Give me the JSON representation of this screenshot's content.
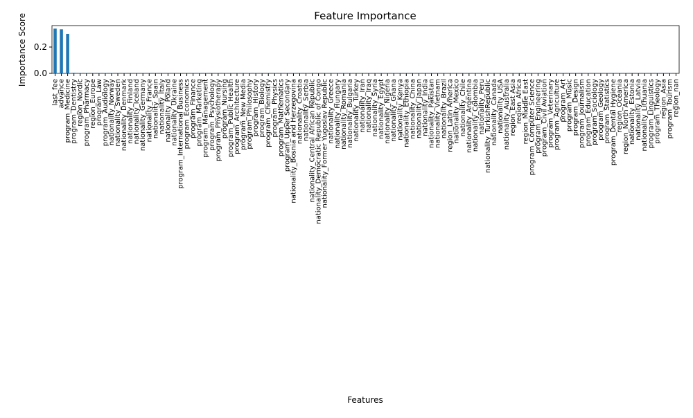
{
  "chart_data": {
    "type": "bar",
    "title": "Feature Importance",
    "x_label": "Features",
    "y_label": "Importance Score",
    "categories": [
      "last_fee",
      "advance",
      "program_Medicine",
      "program_Dentistry",
      "region_Nordic",
      "program_Pharmacy",
      "region_Europe",
      "program_Law",
      "program_Audiology",
      "nationality_Norway",
      "nationality_Sweden",
      "nationality_Denmark",
      "nationality_Finland",
      "nationality_Iceland",
      "nationality_Germany",
      "nationality_France",
      "nationality_Spain",
      "nationality_Italy",
      "nationality_Poland",
      "nationality_Ukraine",
      "program_International Business",
      "program_Economics",
      "program_Finance",
      "program_Marketing",
      "program_Management",
      "program_Psychology",
      "program_Physiotherapy",
      "program_Nursing",
      "program_Public Health",
      "program_Architecture",
      "program_New Media",
      "program_Philosophy",
      "program_History",
      "program_Biology",
      "program_Chemistry",
      "program_Physics",
      "program_Mathematics",
      "program_Upper Secondary",
      "nationality_Bosnia and Herzegovina",
      "nationality_Croatia",
      "nationality_Serbia",
      "nationality_Central African Republic",
      "nationality_Democratic Republic of Congo",
      "nationality_Former Yugoslav Republic",
      "nationality_Greece",
      "nationality_Hungary",
      "nationality_Romania",
      "nationality_Bulgaria",
      "nationality_Turkey",
      "nationality_Iran",
      "nationality_Iraq",
      "nationality_Syria",
      "nationality_Egypt",
      "nationality_Nigeria",
      "nationality_Ghana",
      "nationality_Kenya",
      "nationality_Ethiopia",
      "nationality_China",
      "nationality_Japan",
      "nationality_India",
      "nationality_Pakistan",
      "nationality_Vietnam",
      "nationality_Brazil",
      "region_Latin America",
      "nationality_Mexico",
      "nationality_Chile",
      "nationality_Argentina",
      "nationality_Colombia",
      "nationality_Peru",
      "nationality_TurkishRepublic",
      "nationality_Canada",
      "nationality_USA",
      "nationality_Australia",
      "region_East Asia",
      "region_Africa",
      "region_Middle East",
      "program_Computer Science",
      "program_Engineering",
      "program_Civil Aviation",
      "program_Veterinary",
      "program_Agriculture",
      "program_Art",
      "program_Music",
      "program_Design",
      "program_Journalism",
      "program_Education",
      "program_Sociology",
      "program_Geology",
      "program_Statistics",
      "program_Dental Hygiene",
      "region_Oceania",
      "region_North America",
      "nationality_Estonia",
      "nationality_Latvia",
      "nationality_Lithuania",
      "program_Linguistics",
      "program_Theology",
      "region_Asia",
      "program_Tourism",
      "region_nan"
    ],
    "values": [
      0.34,
      0.335,
      0.3,
      0.004,
      0.003,
      0.003,
      0.002,
      0.002,
      0.002,
      0.002,
      0.001,
      0.001,
      0.001,
      0.001,
      0.001,
      0.001,
      0.001,
      0.001,
      0.001,
      0.001,
      0.001,
      0.001,
      0.001,
      0.001,
      0.001,
      0.001,
      0.001,
      0.001,
      0.001,
      0.001,
      0.001,
      0.001,
      0.001,
      0.001,
      0.001,
      0.001,
      0.001,
      0.001,
      0.001,
      0.001,
      0.001,
      0.001,
      0.001,
      0.001,
      0.001,
      0.001,
      0.001,
      0.001,
      0.001,
      0.001,
      0.001,
      0.001,
      0.001,
      0.001,
      0.001,
      0.001,
      0.001,
      0.001,
      0.001,
      0.001,
      0.001,
      0.001,
      0.001,
      0.001,
      0.001,
      0.001,
      0.001,
      0.001,
      0.001,
      0.001,
      0.001,
      0.001,
      0.001,
      0.001,
      0.001,
      0.001,
      0.001,
      0.001,
      0.001,
      0.001,
      0.001,
      0.001,
      0.001,
      0.001,
      0.001,
      0.001,
      0.001,
      0.001,
      0.001,
      0.001,
      0.001,
      0.001,
      0.001,
      0.001,
      0.001,
      0.001,
      0.001,
      0.001,
      0.001,
      0.001
    ],
    "color": "#1f77b4",
    "ylim": [
      0,
      0.363
    ],
    "yticks": [
      {
        "value": 0,
        "label": "0.0"
      },
      0.2
    ]
  }
}
